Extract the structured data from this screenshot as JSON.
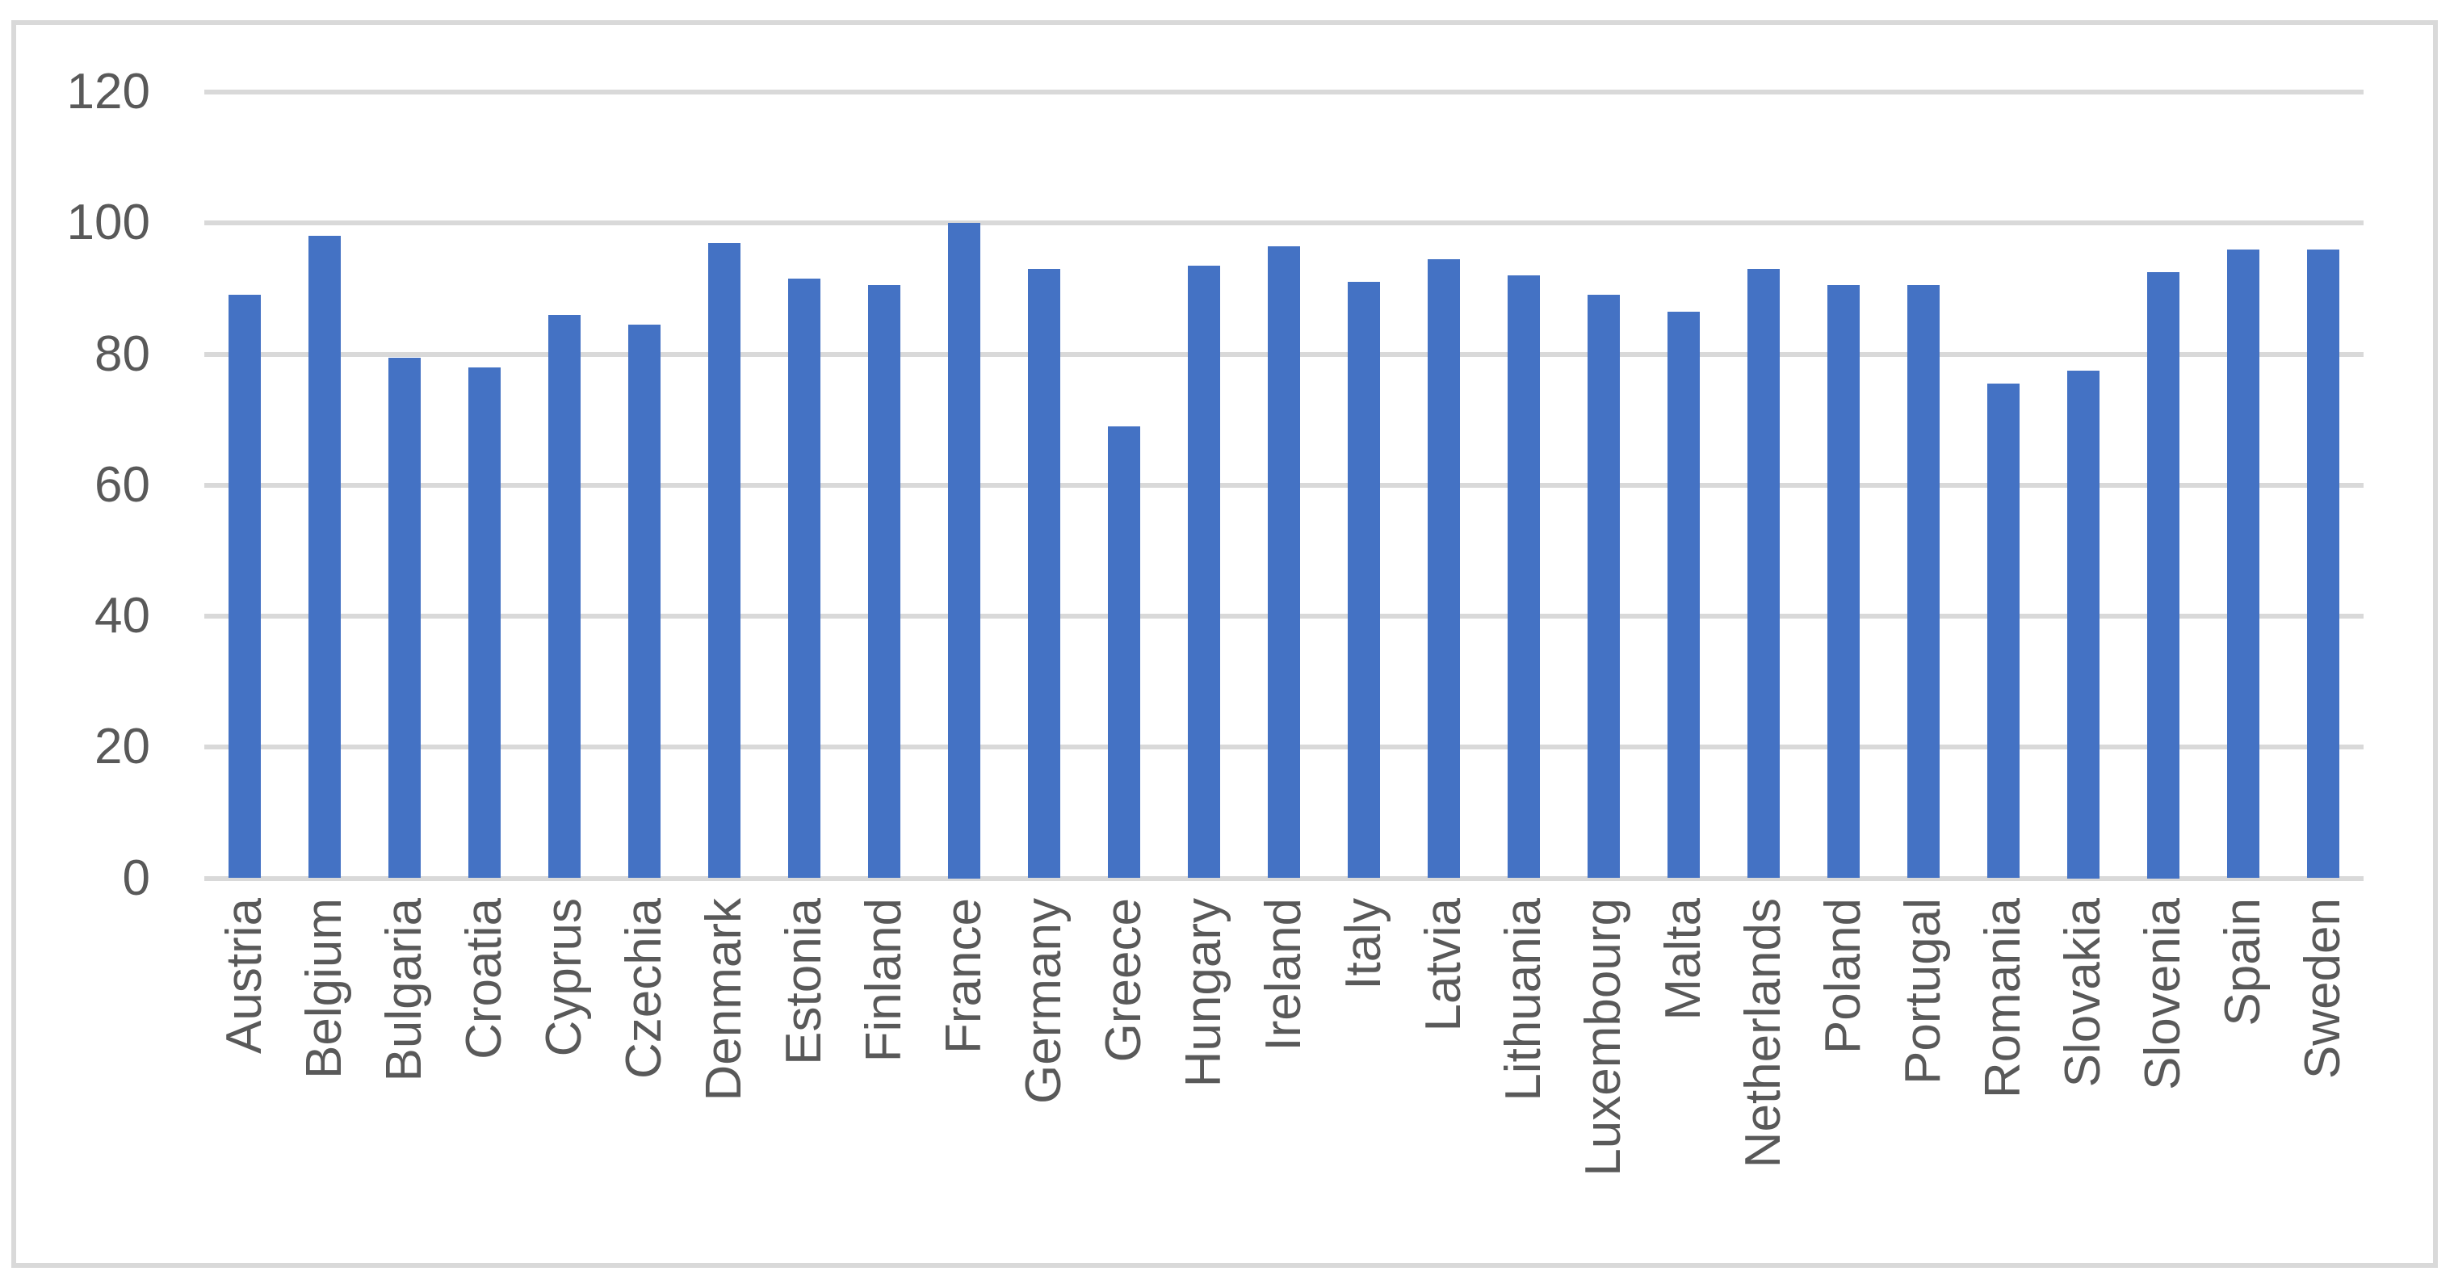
{
  "chart_data": {
    "type": "bar",
    "title": "",
    "xlabel": "",
    "ylabel": "",
    "categories": [
      "Austria",
      "Belgium",
      "Bulgaria",
      "Croatia",
      "Cyprus",
      "Czechia",
      "Denmark",
      "Estonia",
      "Finland",
      "France",
      "Germany",
      "Greece",
      "Hungary",
      "Ireland",
      "Italy",
      "Latvia",
      "Lithuania",
      "Luxembourg",
      "Malta",
      "Netherlands",
      "Poland",
      "Portugal",
      "Romania",
      "Slovakia",
      "Slovenia",
      "Spain",
      "Sweden"
    ],
    "values": [
      89,
      98,
      79.5,
      78,
      86,
      84.5,
      97,
      91.5,
      90.5,
      100,
      93,
      69,
      93.5,
      96.5,
      91,
      94.5,
      92,
      89,
      86.5,
      93,
      90.5,
      90.5,
      75.5,
      77.5,
      92.5,
      96,
      96
    ],
    "yticks": [
      0,
      20,
      40,
      60,
      80,
      100,
      120
    ],
    "ylim": [
      0,
      120
    ],
    "grid": true,
    "legend": "none",
    "colors": {
      "bar": "#4472C4",
      "gridline": "#D9D9D9",
      "axis_line": "#D9D9D9",
      "tick_text": "#595959",
      "frame_border": "#D9D9D9",
      "background": "#FFFFFF"
    }
  }
}
